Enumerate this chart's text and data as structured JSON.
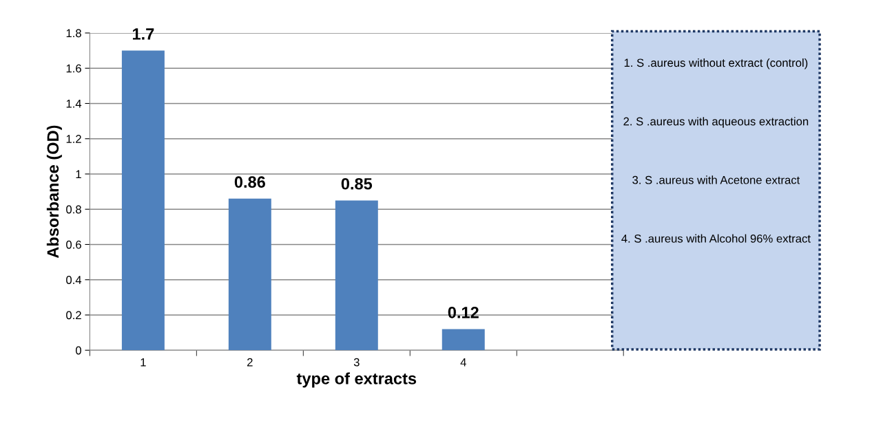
{
  "chart_data": {
    "type": "bar",
    "xlabel": "type of extracts",
    "ylabel": "Absorbance (OD)",
    "categories": [
      "1",
      "2",
      "3",
      "4",
      null
    ],
    "values": [
      1.7,
      0.86,
      0.85,
      0.12,
      null
    ],
    "color": "#4f81bd",
    "data_labels": true,
    "ylim": [
      0,
      1.8
    ],
    "yticks": [
      0,
      0.2,
      0.4,
      0.6,
      0.8,
      1,
      1.2,
      1.4,
      1.6,
      1.8
    ],
    "grid": "y",
    "annotations": [
      "1. S .aureus without extract (control)",
      "2. S .aureus with aqueous extraction",
      "3. S .aureus with Acetone extract",
      "4. S .aureus with Alcohol 96% extract"
    ]
  }
}
